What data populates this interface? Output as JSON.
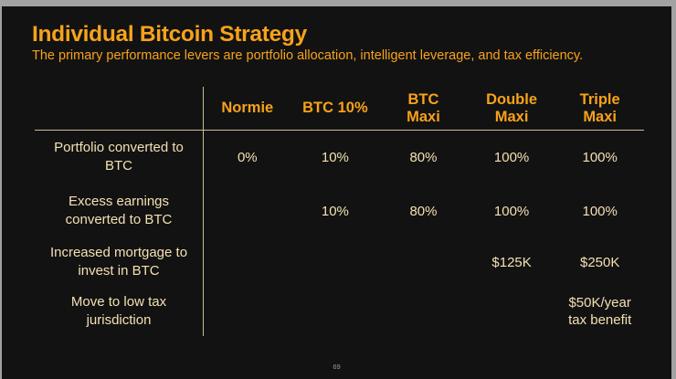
{
  "slide": {
    "title": "Individual Bitcoin Strategy",
    "subtitle": "The primary performance levers are portfolio allocation, intelligent leverage, and tax efficiency.",
    "page_number": "69"
  },
  "colors": {
    "background": "#121212",
    "frame": "#a2a2a2",
    "accent_orange": "#f7a21b",
    "text_cream": "#f3e0b2",
    "line_tan": "#cbbc94",
    "page_num": "#9a9a9a"
  },
  "table": {
    "corner_label": "",
    "columns": [
      "Normie",
      "BTC 10%",
      "BTC\nMaxi",
      "Double\nMaxi",
      "Triple\nMaxi"
    ],
    "rows": [
      {
        "label": "Portfolio converted to\nBTC",
        "values": [
          "0%",
          "10%",
          "80%",
          "100%",
          "100%"
        ]
      },
      {
        "label": "Excess earnings\nconverted to BTC",
        "values": [
          "",
          "10%",
          "80%",
          "100%",
          "100%"
        ]
      },
      {
        "label": "Increased mortgage to\ninvest in BTC",
        "values": [
          "",
          "",
          "",
          "$125K",
          "$250K"
        ]
      },
      {
        "label": "Move to low tax\njurisdiction",
        "values": [
          "",
          "",
          "",
          "",
          "$50K/year\ntax benefit"
        ]
      }
    ]
  }
}
